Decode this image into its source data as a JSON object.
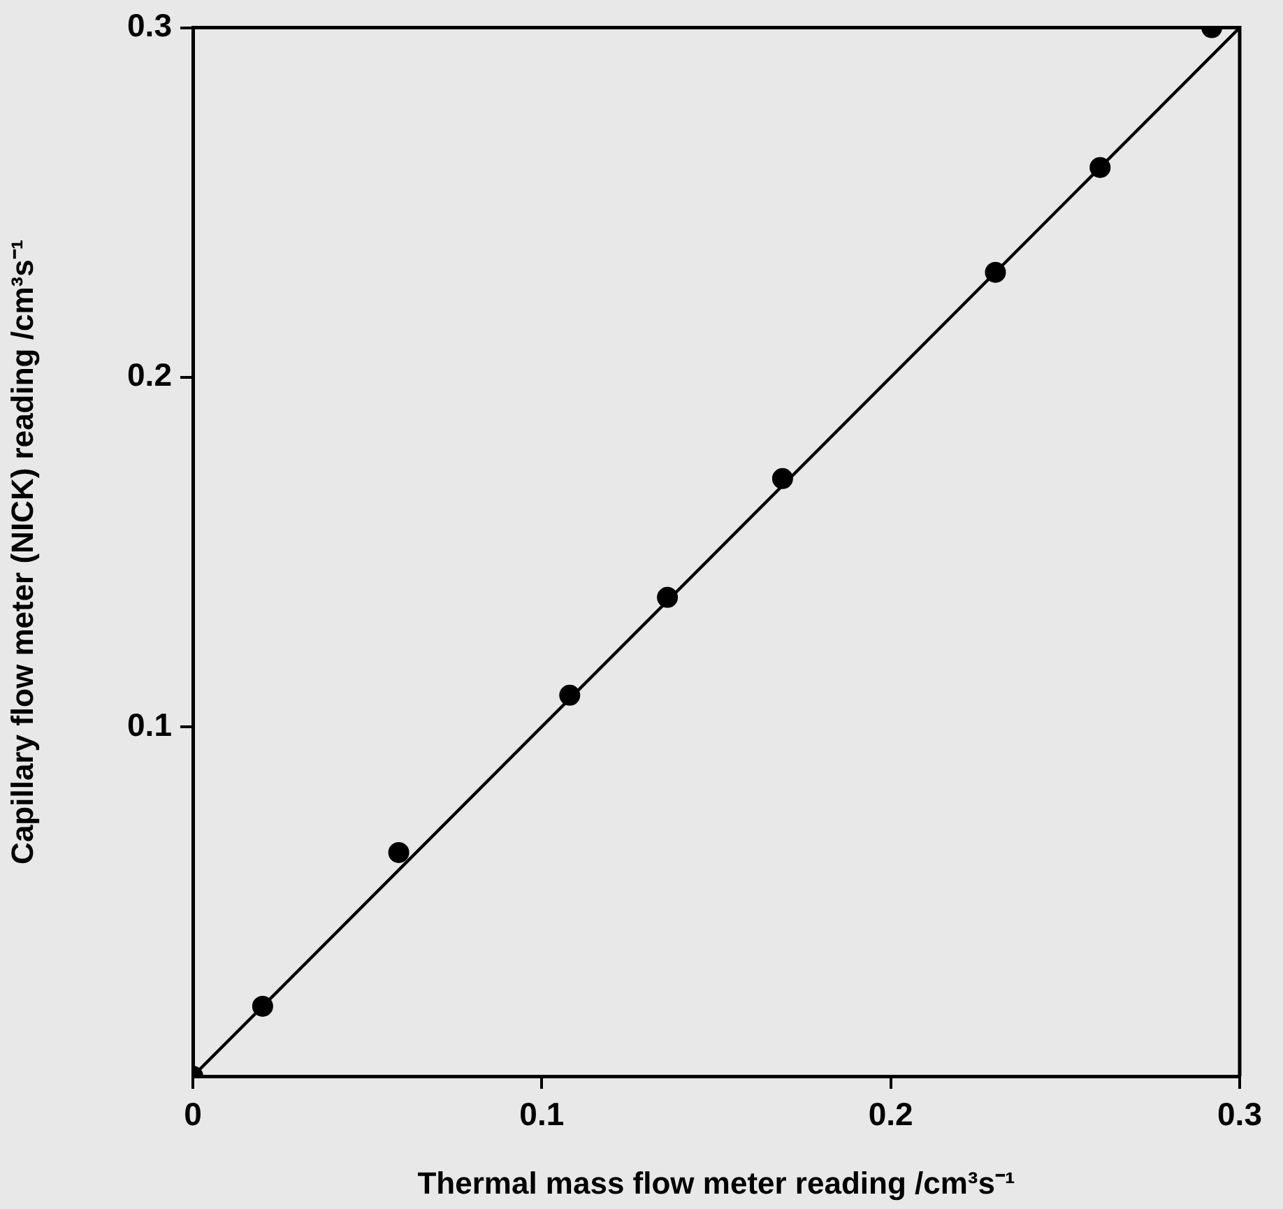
{
  "chart_data": {
    "type": "scatter",
    "xlabel": "Thermal mass flow meter reading /cm³s⁻¹",
    "ylabel": "Capillary flow meter (NICK) reading /cm³s⁻¹",
    "xlim": [
      0,
      0.3
    ],
    "ylim": [
      0,
      0.3
    ],
    "xticks": [
      0,
      0.1,
      0.2,
      0.3
    ],
    "yticks": [
      0.1,
      0.2,
      0.3
    ],
    "series": [
      {
        "color": "#000000",
        "marker": "circle",
        "x": [
          0,
          0.02,
          0.059,
          0.108,
          0.136,
          0.169,
          0.23,
          0.26,
          0.292
        ],
        "values": [
          0,
          0.02,
          0.064,
          0.109,
          0.137,
          0.171,
          0.23,
          0.26,
          0.3
        ]
      },
      {
        "type": "line",
        "color": "#000000",
        "marker": "none",
        "x": [
          0,
          0.3
        ],
        "values": [
          0,
          0.3
        ]
      }
    ],
    "line_style": "solid",
    "grid": false,
    "legend": false
  }
}
